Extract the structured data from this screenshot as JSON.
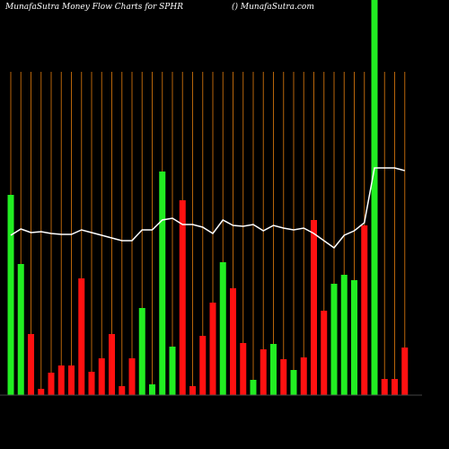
{
  "chart_data": {
    "type": "bar",
    "title": "MunafaSutra  Money Flow  Charts for SPHR",
    "subtitle": "() MunafaSutra.com",
    "up_color": "#22ee22",
    "down_color": "#ff1111",
    "line_color": "#ffffff",
    "grid_color": "#b8650a",
    "ylim": [
      0,
      440
    ],
    "directions": [
      "up",
      "up",
      "down",
      "down",
      "down",
      "down",
      "down",
      "down",
      "down",
      "down",
      "down",
      "down",
      "down",
      "up",
      "up",
      "up",
      "up",
      "down",
      "down",
      "down",
      "down",
      "up",
      "down",
      "down",
      "up",
      "down",
      "up",
      "down",
      "up",
      "down",
      "down",
      "down",
      "up",
      "up",
      "up",
      "down",
      "up",
      "down",
      "down",
      "down"
    ],
    "values": [
      223,
      146,
      68,
      7,
      25,
      33,
      33,
      130,
      26,
      41,
      68,
      10,
      41,
      97,
      12,
      249,
      54,
      217,
      10,
      66,
      103,
      148,
      119,
      58,
      17,
      51,
      57,
      40,
      28,
      42,
      195,
      94,
      124,
      134,
      128,
      189,
      440,
      18,
      18,
      53
    ],
    "line": [
      178,
      185,
      181,
      182,
      180,
      179,
      179,
      184,
      181,
      178,
      175,
      172,
      172,
      184,
      184,
      195,
      197,
      190,
      190,
      187,
      180,
      195,
      189,
      188,
      190,
      183,
      189,
      186,
      184,
      186,
      180,
      172,
      164,
      178,
      183,
      192,
      253,
      253,
      253,
      250
    ]
  }
}
